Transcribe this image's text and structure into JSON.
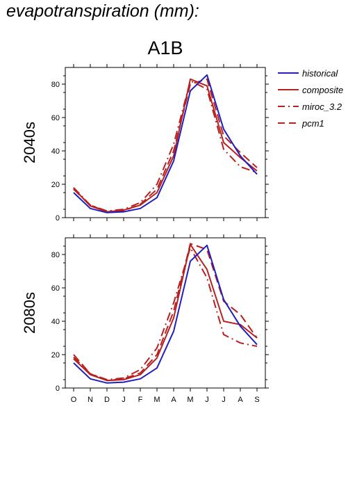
{
  "page_title": "evapotranspiration (mm):",
  "scenario": "A1B",
  "colors": {
    "historical": "#1f1fbf",
    "projection": "#b81f1f",
    "axis": "#000000"
  },
  "chart_data": [
    {
      "type": "line",
      "panel_label": "2040s",
      "categories": [
        "O",
        "N",
        "D",
        "J",
        "F",
        "M",
        "A",
        "M",
        "J",
        "J",
        "A",
        "S"
      ],
      "ylim": [
        0,
        90
      ],
      "yticks": [
        0,
        20,
        40,
        60,
        80
      ],
      "grid": false,
      "legend_position": "right",
      "series": [
        {
          "name": "historical",
          "style": "solid",
          "color": "#1f1fbf",
          "values": [
            15,
            5.5,
            3,
            3.5,
            5.5,
            12,
            34,
            76,
            85.5,
            53,
            37,
            26
          ]
        },
        {
          "name": "composite",
          "style": "solid",
          "color": "#b81f1f",
          "values": [
            17.5,
            7,
            3.5,
            4.5,
            7.5,
            15,
            37,
            83,
            79,
            45,
            36,
            28
          ]
        },
        {
          "name": "miroc_3.2",
          "style": "dashdot",
          "color": "#b81f1f",
          "values": [
            18,
            7.5,
            4,
            5,
            9,
            20,
            44,
            82,
            77,
            41,
            30.5,
            27
          ]
        },
        {
          "name": "pcm1",
          "style": "longdash",
          "color": "#b81f1f",
          "values": [
            17,
            7.5,
            3.5,
            4,
            8,
            17,
            40,
            80,
            83,
            49,
            39,
            30
          ]
        }
      ]
    },
    {
      "type": "line",
      "panel_label": "2080s",
      "categories": [
        "O",
        "N",
        "D",
        "J",
        "F",
        "M",
        "A",
        "M",
        "J",
        "J",
        "A",
        "S"
      ],
      "ylim": [
        0,
        90
      ],
      "yticks": [
        0,
        20,
        40,
        60,
        80
      ],
      "grid": false,
      "series": [
        {
          "name": "historical",
          "style": "solid",
          "color": "#1f1fbf",
          "values": [
            15,
            5.5,
            3,
            3.5,
            5.5,
            12,
            34,
            76,
            85.5,
            53,
            37,
            26
          ]
        },
        {
          "name": "composite",
          "style": "solid",
          "color": "#b81f1f",
          "values": [
            17.5,
            8,
            4.5,
            5,
            8,
            18,
            42,
            86,
            71,
            40,
            38,
            30
          ]
        },
        {
          "name": "miroc_3.2",
          "style": "dashdot",
          "color": "#b81f1f",
          "values": [
            18.5,
            8.5,
            5,
            6,
            11,
            24,
            51,
            84,
            66,
            32,
            27,
            25
          ]
        },
        {
          "name": "pcm1",
          "style": "longdash",
          "color": "#b81f1f",
          "values": [
            20,
            8.5,
            4.5,
            5.5,
            9,
            20,
            46,
            86.5,
            83,
            52,
            44,
            30
          ]
        }
      ]
    }
  ]
}
